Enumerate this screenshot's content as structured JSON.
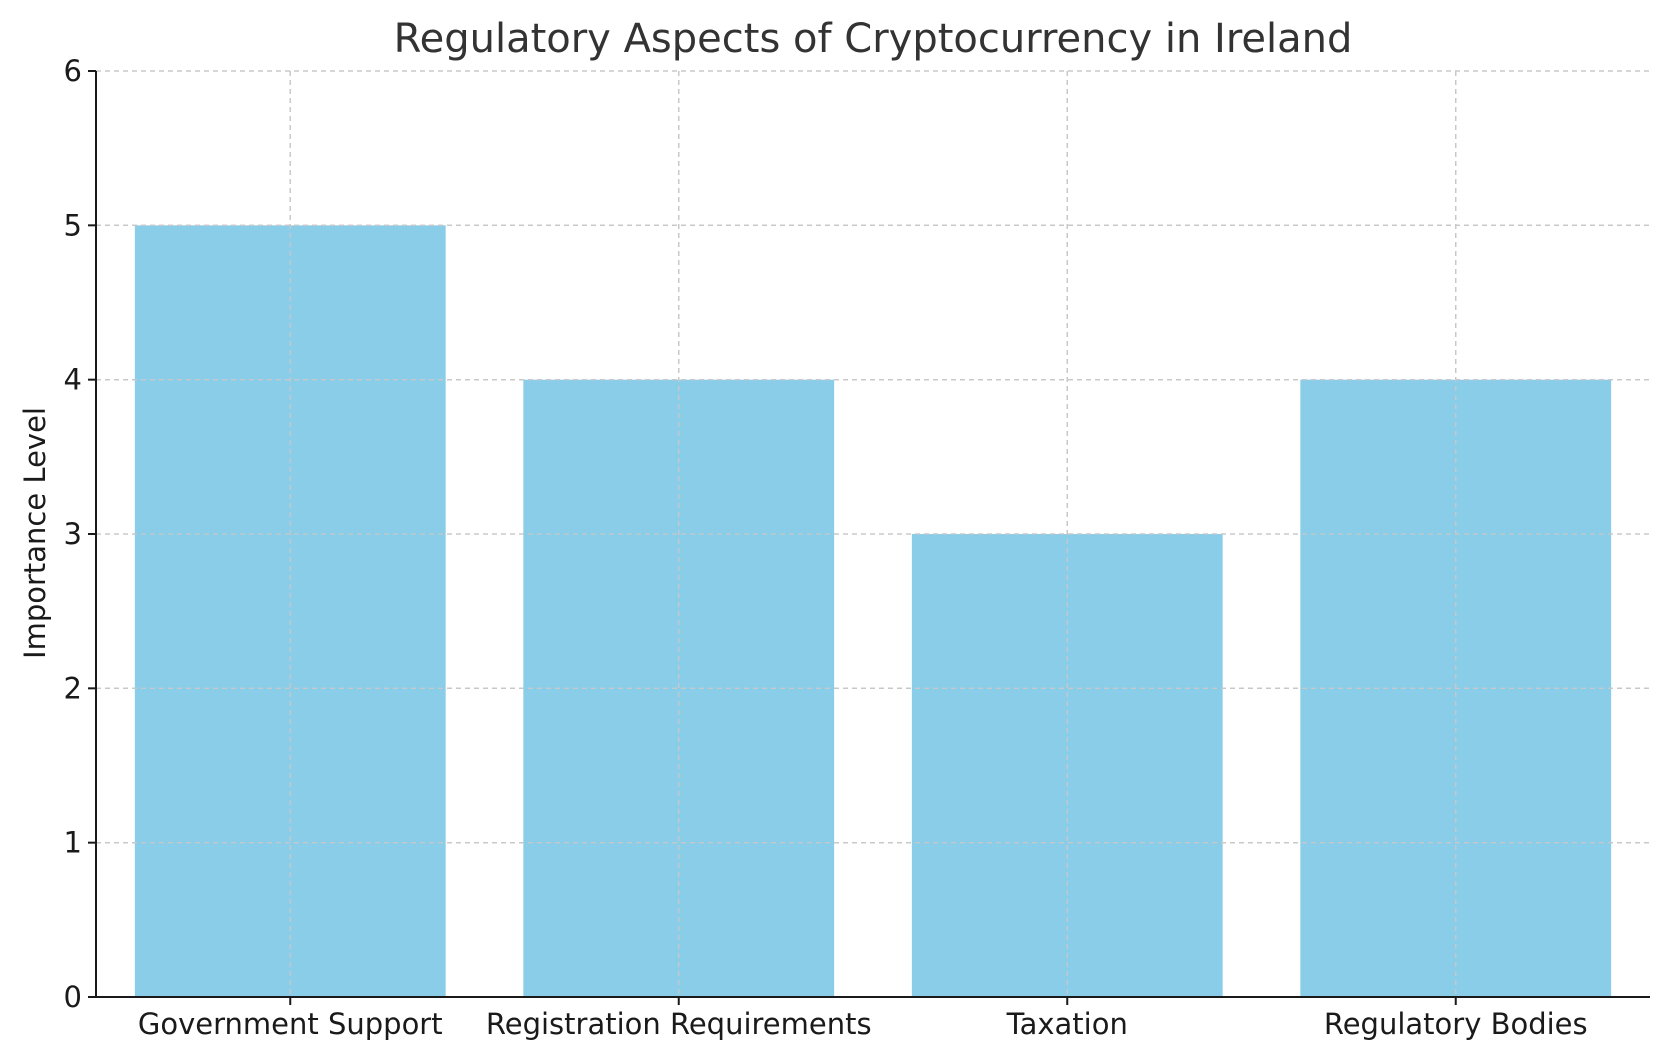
{
  "chart_data": {
    "type": "bar",
    "title": "Regulatory Aspects of Cryptocurrency in Ireland",
    "xlabel": "",
    "ylabel": "Importance Level",
    "categories": [
      "Government Support",
      "Registration Requirements",
      "Taxation",
      "Regulatory Bodies"
    ],
    "values": [
      5,
      4,
      3,
      4
    ],
    "ylim": [
      0,
      6
    ],
    "yticks": [
      0,
      1,
      2,
      3,
      4,
      5,
      6
    ],
    "grid": true,
    "bar_color": "#89CDE9"
  }
}
